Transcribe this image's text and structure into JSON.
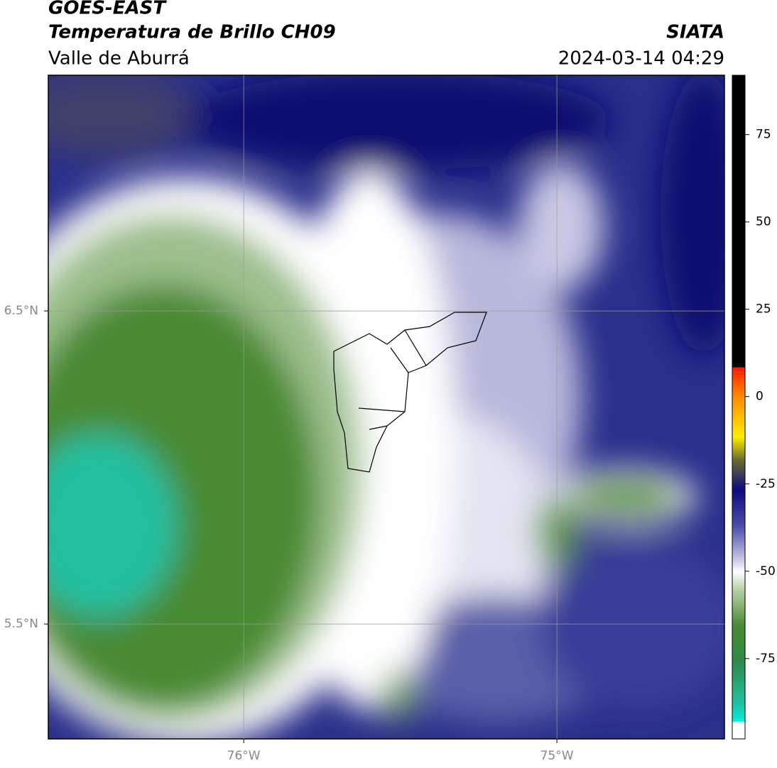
{
  "header": {
    "title": "GOES-EAST",
    "subtitle": "Temperatura de Brillo CH09",
    "region": "Valle de Aburrá",
    "source": "SIATA",
    "timestamp": "2024-03-14 04:29"
  },
  "map": {
    "xlim": [
      -76.624,
      -74.465
    ],
    "ylim": [
      5.133,
      7.253
    ],
    "xticks": [
      {
        "value": -76,
        "label": "76°W"
      },
      {
        "value": -75,
        "label": "75°W"
      }
    ],
    "yticks": [
      {
        "value": 6.5,
        "label": "6.5°N"
      },
      {
        "value": 5.5,
        "label": "5.5°N"
      }
    ],
    "grid": true
  },
  "colorbar": {
    "lim": [
      -98,
      92
    ],
    "ticks": [
      75,
      50,
      25,
      0,
      -25,
      -50,
      -75
    ]
  }
}
